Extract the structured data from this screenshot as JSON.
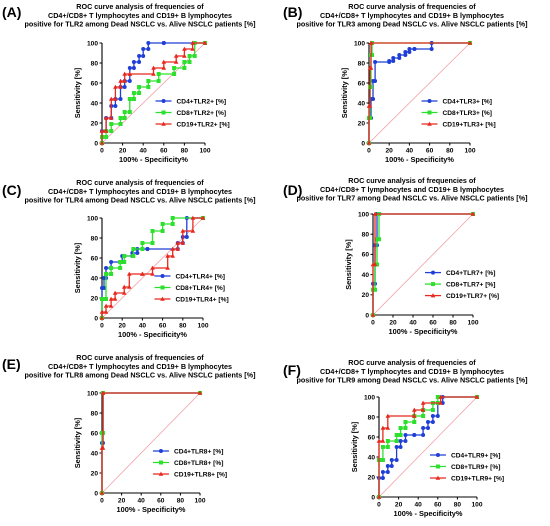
{
  "chart_data": [
    {
      "type": "line",
      "letter": "(A)",
      "title": [
        "ROC curve analysis of frequencies of",
        "CD4+/CD8+ T lymphocytes and CD19+ B lymphocytes",
        "positive for TLR2 among Dead NSCLC vs. Alive NSCLC patients [%]"
      ],
      "xlabel": "100% - Specificity%",
      "ylabel": "Sensitivity [%]",
      "xlim": [
        0,
        100
      ],
      "ylim": [
        0,
        100
      ],
      "xticks": [
        0,
        20,
        40,
        60,
        80,
        100
      ],
      "yticks": [
        0,
        20,
        40,
        60,
        80,
        100
      ],
      "legend": "bottom-right",
      "series": [
        {
          "name": "CD4+TLR2+ [%]",
          "color": "#1f3fd6",
          "marker": "circle",
          "x": [
            0,
            0,
            0,
            4,
            4,
            9,
            9,
            13,
            13,
            18,
            18,
            22,
            22,
            27,
            27,
            31,
            31,
            36,
            36,
            40,
            40,
            45,
            45,
            60,
            60,
            100
          ],
          "y": [
            0,
            6,
            12,
            12,
            25,
            25,
            37,
            37,
            44,
            44,
            56,
            56,
            62,
            62,
            75,
            75,
            81,
            81,
            87,
            87,
            94,
            94,
            100,
            100,
            100,
            100
          ]
        },
        {
          "name": "CD8+TLR2+ [%]",
          "color": "#2ee02e",
          "marker": "square",
          "x": [
            0,
            0,
            4,
            4,
            9,
            9,
            18,
            18,
            22,
            22,
            27,
            27,
            31,
            31,
            36,
            36,
            45,
            45,
            55,
            55,
            70,
            70,
            80,
            80,
            85,
            85,
            90,
            90,
            100
          ],
          "y": [
            0,
            6,
            6,
            12,
            12,
            19,
            19,
            25,
            25,
            31,
            31,
            44,
            44,
            50,
            50,
            56,
            56,
            62,
            62,
            69,
            69,
            75,
            75,
            81,
            81,
            87,
            87,
            100,
            100
          ]
        },
        {
          "name": "CD19+TLR2+ [%]",
          "color": "#e8281e",
          "marker": "triangle",
          "x": [
            0,
            0,
            4,
            4,
            9,
            9,
            13,
            13,
            18,
            18,
            22,
            22,
            27,
            27,
            50,
            50,
            60,
            60,
            72,
            72,
            80,
            80,
            88,
            88,
            100
          ],
          "y": [
            0,
            12,
            12,
            25,
            25,
            44,
            44,
            56,
            56,
            62,
            62,
            69,
            69,
            69,
            69,
            75,
            75,
            81,
            81,
            87,
            87,
            94,
            94,
            100,
            100
          ]
        }
      ]
    },
    {
      "type": "line",
      "letter": "(B)",
      "title": [
        "ROC curve analysis of frequencies of",
        "CD4+/CD8+ T lymphocytes and CD19+ B lymphocytes",
        "positive for TLR3 among Dead NSCLC vs. Alive NSCLC patients [%]"
      ],
      "xlabel": "100% - Specificity%",
      "ylabel": "Sensitivity [%]",
      "xlim": [
        0,
        100
      ],
      "ylim": [
        0,
        100
      ],
      "xticks": [
        0,
        20,
        40,
        60,
        80,
        100
      ],
      "yticks": [
        0,
        20,
        40,
        60,
        80,
        100
      ],
      "legend": "bottom-right",
      "series": [
        {
          "name": "CD4+TLR3+ [%]",
          "color": "#1f3fd6",
          "marker": "circle",
          "x": [
            0,
            0,
            2,
            2,
            4,
            4,
            6,
            6,
            20,
            20,
            24,
            24,
            30,
            30,
            36,
            36,
            40,
            40,
            45,
            45,
            62,
            62,
            100
          ],
          "y": [
            0,
            25,
            25,
            44,
            44,
            62,
            62,
            81,
            81,
            82,
            82,
            85,
            85,
            88,
            88,
            91,
            91,
            94,
            94,
            94,
            94,
            100,
            100
          ]
        },
        {
          "name": "CD8+TLR3+ [%]",
          "color": "#2ee02e",
          "marker": "square",
          "x": [
            0,
            0,
            1,
            1,
            2,
            2,
            3,
            3,
            100
          ],
          "y": [
            0,
            25,
            25,
            56,
            56,
            88,
            88,
            100,
            100
          ]
        },
        {
          "name": "CD19+TLR3+ [%]",
          "color": "#e8281e",
          "marker": "triangle",
          "x": [
            0,
            0,
            1,
            1,
            2,
            2,
            100
          ],
          "y": [
            0,
            37,
            37,
            75,
            75,
            100,
            100
          ]
        }
      ]
    },
    {
      "type": "line",
      "letter": "(C)",
      "title": [
        "ROC curve analysis of frequencies of",
        "CD4+/CD8+ T lymphocytes and CD19+ B lymphocytes",
        "positive for TLR4 among Dead NSCLC vs. Alive NSCLC patients [%]"
      ],
      "xlabel": "100% - Specificity%",
      "ylabel": "Sensitivity [%]",
      "xlim": [
        0,
        100
      ],
      "ylim": [
        0,
        100
      ],
      "xticks": [
        0,
        20,
        40,
        60,
        80,
        100
      ],
      "yticks": [
        0,
        20,
        40,
        60,
        80,
        100
      ],
      "legend": "bottom-right",
      "series": [
        {
          "name": "CD4+TLR4+ [%]",
          "color": "#1f3fd6",
          "marker": "circle",
          "x": [
            0,
            0,
            2,
            2,
            4,
            4,
            9,
            9,
            20,
            20,
            30,
            30,
            35,
            35,
            45,
            45,
            75,
            75,
            80,
            80,
            84,
            84,
            100
          ],
          "y": [
            0,
            30,
            30,
            40,
            40,
            50,
            50,
            56,
            56,
            62,
            62,
            65,
            65,
            69,
            69,
            69,
            69,
            75,
            75,
            81,
            81,
            100,
            100
          ]
        },
        {
          "name": "CD8+TLR4+ [%]",
          "color": "#2ee02e",
          "marker": "square",
          "x": [
            0,
            0,
            4,
            4,
            9,
            9,
            18,
            18,
            22,
            22,
            31,
            31,
            40,
            40,
            50,
            50,
            60,
            60,
            70,
            70,
            100
          ],
          "y": [
            0,
            19,
            19,
            44,
            44,
            50,
            50,
            56,
            56,
            62,
            62,
            69,
            69,
            75,
            75,
            87,
            87,
            94,
            94,
            100,
            100
          ]
        },
        {
          "name": "CD19+TLR4+ [%]",
          "color": "#e8281e",
          "marker": "triangle",
          "x": [
            0,
            0,
            4,
            4,
            9,
            9,
            13,
            13,
            22,
            22,
            27,
            27,
            40,
            40,
            50,
            50,
            65,
            65,
            70,
            70,
            75,
            75,
            80,
            80,
            90,
            90,
            100
          ],
          "y": [
            0,
            6,
            6,
            12,
            12,
            19,
            19,
            25,
            25,
            31,
            31,
            44,
            44,
            44,
            44,
            50,
            50,
            62,
            62,
            69,
            69,
            75,
            75,
            87,
            87,
            100,
            100
          ]
        }
      ]
    },
    {
      "type": "line",
      "letter": "(D)",
      "title": [
        "ROC curve analysis of frequencies of",
        "CD4+/CD8+ T lymphocytes and CD19+ B lymphocytes",
        "positive for TLR7 among Dead NSCLC vs. Alive NSCLC patients [%]"
      ],
      "xlabel": "100% - Specificity%",
      "ylabel": "Sensitivity [%]",
      "xlim": [
        0,
        100
      ],
      "ylim": [
        0,
        100
      ],
      "xticks": [
        0,
        20,
        40,
        60,
        80,
        100
      ],
      "yticks": [
        0,
        20,
        40,
        60,
        80,
        100
      ],
      "legend": "bottom-right",
      "series": [
        {
          "name": "CD4+TLR7+ [%]",
          "color": "#1f3fd6",
          "marker": "circle",
          "x": [
            0,
            0,
            2,
            2,
            4,
            4,
            100
          ],
          "y": [
            0,
            31,
            31,
            69,
            69,
            100,
            100
          ]
        },
        {
          "name": "CD8+TLR7+ [%]",
          "color": "#2ee02e",
          "marker": "square",
          "x": [
            0,
            0,
            2,
            2,
            4,
            4,
            6,
            6,
            100
          ],
          "y": [
            0,
            25,
            25,
            50,
            50,
            75,
            75,
            100,
            100
          ]
        },
        {
          "name": "CD19+TLR7+ [%]",
          "color": "#e8281e",
          "marker": "triangle",
          "x": [
            0,
            0,
            2,
            2,
            100
          ],
          "y": [
            0,
            50,
            50,
            100,
            100
          ]
        }
      ]
    },
    {
      "type": "line",
      "letter": "(E)",
      "title": [
        "ROC curve analysis of frequencies of",
        "CD4+/CD8+ T lymphocytes and CD19+ B lymphocytes",
        "positive for TLR8 among Dead NSCLC vs. Alive NSCLC patients [%]"
      ],
      "xlabel": "100% - Specificity%",
      "ylabel": "Sensitivity [%]",
      "xlim": [
        0,
        100
      ],
      "ylim": [
        0,
        100
      ],
      "xticks": [
        0,
        20,
        40,
        60,
        80,
        100
      ],
      "yticks": [
        0,
        20,
        40,
        60,
        80,
        100
      ],
      "legend": "bottom-right",
      "series": [
        {
          "name": "CD4+TLR8+ [%]",
          "color": "#1f3fd6",
          "marker": "circle",
          "x": [
            0,
            0,
            1,
            1,
            100
          ],
          "y": [
            0,
            50,
            50,
            100,
            100
          ]
        },
        {
          "name": "CD8+TLR8+ [%]",
          "color": "#2ee02e",
          "marker": "square",
          "x": [
            0,
            0,
            1,
            1,
            100
          ],
          "y": [
            0,
            60,
            60,
            100,
            100
          ]
        },
        {
          "name": "CD19+TLR8+ [%]",
          "color": "#e8281e",
          "marker": "triangle",
          "x": [
            0,
            0,
            1,
            1,
            100
          ],
          "y": [
            0,
            45,
            45,
            100,
            100
          ]
        }
      ]
    },
    {
      "type": "line",
      "letter": "(F)",
      "title": [
        "ROC curve analysis of frequencies of",
        "CD4+/CD8+ T lymphocytes and CD19+ B lymphocytes",
        "positive for TLR9 among Dead NSCLC vs. Alive NSCLC patients [%]"
      ],
      "xlabel": "100% - Specificity%",
      "ylabel": "Sensitivity [%]",
      "xlim": [
        0,
        100
      ],
      "ylim": [
        0,
        100
      ],
      "xticks": [
        0,
        20,
        40,
        60,
        80,
        100
      ],
      "yticks": [
        0,
        20,
        40,
        60,
        80,
        100
      ],
      "legend": "bottom-right",
      "series": [
        {
          "name": "CD4+TLR9+ [%]",
          "color": "#1f3fd6",
          "marker": "circle",
          "x": [
            0,
            0,
            4,
            4,
            9,
            9,
            13,
            13,
            18,
            18,
            22,
            22,
            27,
            27,
            36,
            36,
            45,
            45,
            50,
            50,
            55,
            55,
            60,
            60,
            65,
            65,
            100
          ],
          "y": [
            0,
            19,
            19,
            25,
            25,
            31,
            31,
            37,
            37,
            50,
            50,
            56,
            56,
            62,
            62,
            62,
            62,
            69,
            69,
            75,
            75,
            81,
            81,
            94,
            94,
            100,
            100
          ]
        },
        {
          "name": "CD8+TLR9+ [%]",
          "color": "#2ee02e",
          "marker": "square",
          "x": [
            0,
            0,
            4,
            4,
            9,
            9,
            18,
            18,
            22,
            22,
            27,
            27,
            36,
            36,
            45,
            45,
            55,
            55,
            60,
            60,
            100
          ],
          "y": [
            0,
            37,
            37,
            50,
            50,
            56,
            56,
            62,
            62,
            69,
            69,
            75,
            75,
            81,
            81,
            87,
            87,
            94,
            94,
            100,
            100
          ]
        },
        {
          "name": "CD19+TLR9+ [%]",
          "color": "#e8281e",
          "marker": "triangle",
          "x": [
            0,
            0,
            4,
            4,
            9,
            9,
            36,
            36,
            45,
            45,
            63,
            63,
            100
          ],
          "y": [
            0,
            56,
            56,
            69,
            69,
            81,
            81,
            87,
            87,
            94,
            94,
            100,
            100
          ]
        }
      ]
    }
  ]
}
